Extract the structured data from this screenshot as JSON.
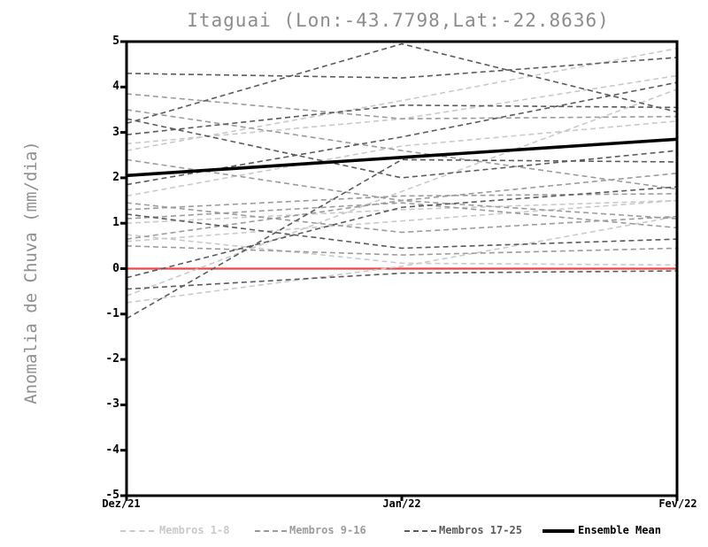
{
  "chart_data": {
    "type": "line",
    "title": "Itaguai (Lon:-43.7798,Lat:-22.8636)",
    "ylabel": "Anomalia de Chuva (mm/dia)",
    "xlabel": "",
    "x_categories": [
      "Dez/21",
      "Jan/22",
      "Fev/22"
    ],
    "ylim": [
      -5,
      5
    ],
    "y_ticks": [
      "5",
      "4",
      "3",
      "2",
      "1",
      "0",
      "-1",
      "-2",
      "-3",
      "-4",
      "-5"
    ],
    "grid": false,
    "legend_position": "bottom",
    "zero_line": {
      "y": 0,
      "color": "#ef4747"
    },
    "axis_color": "#000000",
    "note": "member trajectories estimated from pixels; monthly vertices at Dez/21, Jan/22, Fev/22",
    "series": [
      {
        "name": "Membros 1-8",
        "color": "#c9c9c9",
        "style": "dashed",
        "members": [
          [
            2.6,
            3.7,
            4.85
          ],
          [
            2.75,
            3.3,
            4.25
          ],
          [
            -0.6,
            1.7,
            3.95
          ],
          [
            1.6,
            2.7,
            3.25
          ],
          [
            1.0,
            1.3,
            1.5
          ],
          [
            0.75,
            0.12,
            0.08
          ],
          [
            -0.75,
            0.05,
            1.15
          ],
          [
            0.6,
            1.05,
            1.5
          ]
        ]
      },
      {
        "name": "Membros 9-16",
        "color": "#9b9b9b",
        "style": "dashed",
        "members": [
          [
            3.85,
            3.3,
            3.35
          ],
          [
            3.5,
            2.6,
            1.75
          ],
          [
            1.3,
            1.6,
            1.65
          ],
          [
            1.1,
            1.45,
            0.9
          ],
          [
            0.5,
            0.3,
            0.45
          ],
          [
            2.4,
            1.5,
            1.1
          ],
          [
            0.65,
            1.5,
            2.1
          ],
          [
            1.45,
            0.8,
            1.15
          ]
        ]
      },
      {
        "name": "Membros 17-25",
        "color": "#5a5a5a",
        "style": "dashed",
        "members": [
          [
            3.2,
            4.95,
            3.45
          ],
          [
            4.3,
            4.2,
            4.65
          ],
          [
            2.95,
            3.6,
            3.55
          ],
          [
            1.85,
            2.9,
            4.1
          ],
          [
            -1.1,
            2.4,
            2.35
          ],
          [
            -0.45,
            -0.1,
            -0.05
          ],
          [
            -0.2,
            1.35,
            1.8
          ],
          [
            1.2,
            0.45,
            0.65
          ],
          [
            3.3,
            2.0,
            2.6
          ]
        ]
      }
    ],
    "ensemble_mean": {
      "name": "Ensemble Mean",
      "color": "#000000",
      "style": "solid",
      "values": [
        2.05,
        2.45,
        2.85
      ]
    }
  },
  "legend": {
    "items": [
      {
        "label": "Membros 1-8",
        "color": "#c9c9c9",
        "swatch": "dashed"
      },
      {
        "label": "Membros 9-16",
        "color": "#9b9b9b",
        "swatch": "dashed"
      },
      {
        "label": "Membros 17-25",
        "color": "#5a5a5a",
        "swatch": "dashed"
      },
      {
        "label": "Ensemble Mean",
        "color": "#000000",
        "swatch": "solid"
      }
    ]
  }
}
